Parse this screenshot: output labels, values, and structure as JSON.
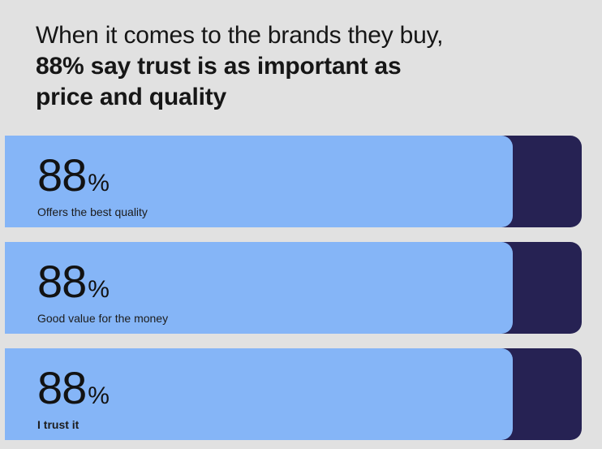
{
  "colors": {
    "bg": "#e1e1e1",
    "fill": "#85b5f7",
    "track": "#262253",
    "text": "#161616"
  },
  "title": {
    "line1": "When it comes to the brands they buy,",
    "line2": "88% say trust is as important as",
    "line3": "price and quality"
  },
  "bars": [
    {
      "value": "88",
      "unit": "%",
      "label": "Offers the best quality",
      "percent": 88,
      "label_bold": false
    },
    {
      "value": "88",
      "unit": "%",
      "label": "Good value for the money",
      "percent": 88,
      "label_bold": false
    },
    {
      "value": "88",
      "unit": "%",
      "label": "I trust it",
      "percent": 88,
      "label_bold": true
    }
  ],
  "chart_data": {
    "type": "bar",
    "orientation": "horizontal",
    "title": "When it comes to the brands they buy, 88% say trust is as important as price and quality",
    "categories": [
      "Offers the best quality",
      "Good value for the money",
      "I trust it"
    ],
    "values": [
      88,
      88,
      88
    ],
    "unit": "%",
    "xlim": [
      0,
      100
    ],
    "grid": false,
    "legend": "none",
    "bar_color": "#85b5f7",
    "track_color": "#262253"
  }
}
